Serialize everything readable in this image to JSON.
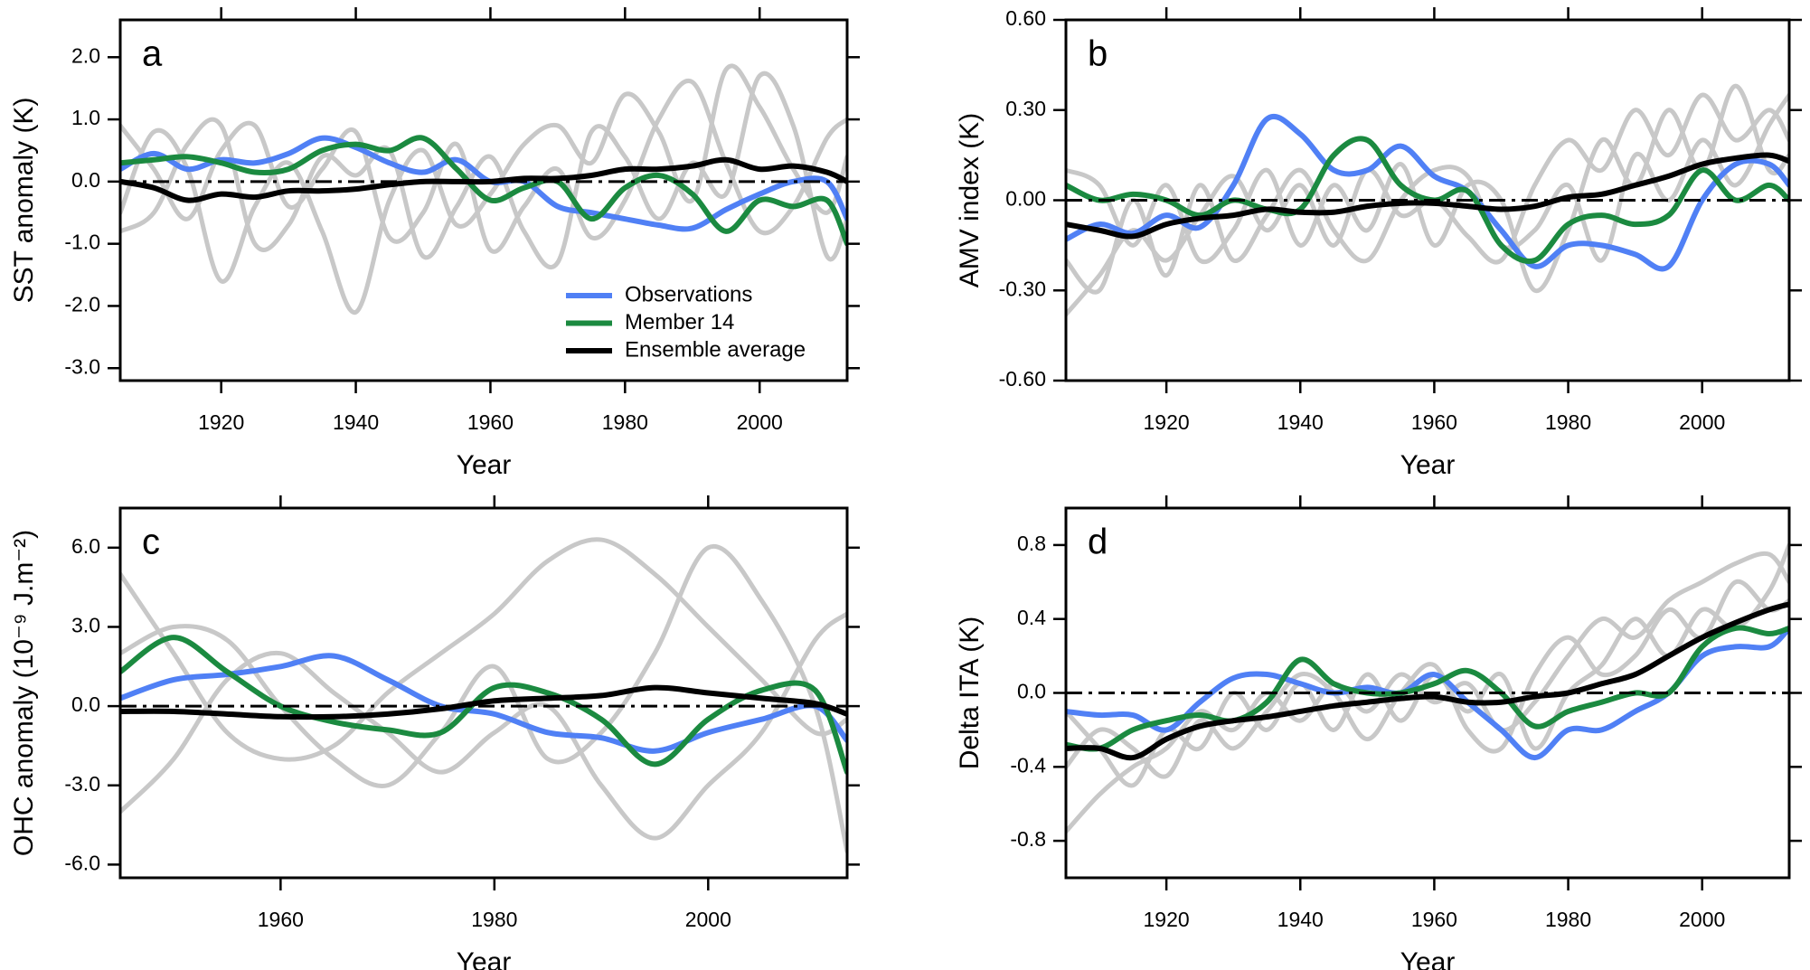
{
  "chart_data": [
    {
      "type": "line",
      "label": "a",
      "ylabel": "SST anomaly (K)",
      "xlabel": "Year",
      "x": [
        1905,
        1910,
        1915,
        1920,
        1925,
        1930,
        1935,
        1940,
        1945,
        1950,
        1955,
        1960,
        1965,
        1970,
        1975,
        1980,
        1985,
        1990,
        1995,
        2000,
        2005,
        2010,
        2013
      ],
      "xlim": [
        1905,
        2013
      ],
      "xticks": [
        1920,
        1940,
        1960,
        1980,
        2000
      ],
      "ylim": [
        -3.2,
        2.6
      ],
      "yticks": [
        {
          "value": -3,
          "label": "-3.0"
        },
        {
          "value": -2,
          "label": "-2.0"
        },
        {
          "value": -1,
          "label": "-1.0"
        },
        {
          "value": 0,
          "label": "0.0"
        },
        {
          "value": 1,
          "label": "1.0"
        },
        {
          "value": 2,
          "label": "2.0"
        }
      ],
      "reference_line": 0,
      "legend": "lower right",
      "series": [
        {
          "color": "#c8c8c8",
          "values": [
            -0.5,
            0.8,
            0.2,
            -1.6,
            -0.4,
            0.3,
            -0.8,
            -2.1,
            -0.3,
            0.5,
            -0.7,
            -0.2,
            0.6,
            0.9,
            0.3,
            1.4,
            0.8,
            -0.3,
            1.8,
            1.2,
            0.2,
            -0.5,
            0.4
          ]
        },
        {
          "color": "#c8c8c8",
          "values": [
            0.9,
            0.2,
            -0.6,
            0.5,
            0.9,
            -0.4,
            0.2,
            0.8,
            -0.9,
            -0.5,
            0.6,
            -1.1,
            -0.4,
            0.2,
            -0.9,
            -0.3,
            1.0,
            1.6,
            0.3,
            -0.8,
            -0.4,
            0.7,
            1.0
          ]
        },
        {
          "color": "#c8c8c8",
          "values": [
            -0.8,
            -0.5,
            0.6,
            0.9,
            -1.0,
            -0.7,
            0.4,
            0.1,
            0.5,
            -1.2,
            -0.4,
            0.4,
            -0.8,
            -1.3,
            0.8,
            0.4,
            -0.6,
            0.3,
            -0.2,
            1.7,
            0.9,
            -1.2,
            -0.6
          ]
        },
        {
          "name": "Observations",
          "color": "#5080f5",
          "values": [
            0.2,
            0.45,
            0.2,
            0.35,
            0.3,
            0.45,
            0.7,
            0.55,
            0.3,
            0.15,
            0.35,
            0.0,
            0.0,
            -0.4,
            -0.5,
            -0.6,
            -0.7,
            -0.75,
            -0.45,
            -0.2,
            0.0,
            0.0,
            -0.6
          ]
        },
        {
          "name": "Member 14",
          "color": "#1b8a40",
          "values": [
            0.3,
            0.35,
            0.4,
            0.3,
            0.15,
            0.2,
            0.5,
            0.6,
            0.5,
            0.7,
            0.2,
            -0.3,
            -0.1,
            0.0,
            -0.6,
            -0.1,
            0.1,
            -0.2,
            -0.8,
            -0.3,
            -0.4,
            -0.3,
            -1.0
          ]
        },
        {
          "name": "Ensemble average",
          "color": "#000000",
          "values": [
            0.0,
            -0.1,
            -0.3,
            -0.2,
            -0.25,
            -0.15,
            -0.15,
            -0.12,
            -0.05,
            0.0,
            0.0,
            0.0,
            0.05,
            0.05,
            0.1,
            0.2,
            0.2,
            0.25,
            0.35,
            0.2,
            0.25,
            0.15,
            0.0
          ]
        }
      ]
    },
    {
      "type": "line",
      "label": "b",
      "ylabel": "AMV index (K)",
      "xlabel": "Year",
      "x": [
        1905,
        1910,
        1915,
        1920,
        1925,
        1930,
        1935,
        1940,
        1945,
        1950,
        1955,
        1960,
        1965,
        1970,
        1975,
        1980,
        1985,
        1990,
        1995,
        2000,
        2005,
        2010,
        2013
      ],
      "xlim": [
        1905,
        2013
      ],
      "xticks": [
        1920,
        1940,
        1960,
        1980,
        2000
      ],
      "ylim": [
        -0.6,
        0.6
      ],
      "yticks": [
        {
          "value": -0.6,
          "label": "-0.60"
        },
        {
          "value": -0.3,
          "label": "-0.30"
        },
        {
          "value": 0,
          "label": "0.00"
        },
        {
          "value": 0.3,
          "label": "0.30"
        },
        {
          "value": 0.6,
          "label": "0.60"
        }
      ],
      "reference_line": 0,
      "series": [
        {
          "color": "#c8c8c8",
          "values": [
            -0.38,
            -0.25,
            -0.1,
            -0.2,
            -0.05,
            0.08,
            -0.1,
            0.05,
            -0.15,
            0.1,
            -0.05,
            0.0,
            -0.12,
            -0.2,
            0.05,
            0.2,
            0.1,
            0.3,
            0.15,
            0.35,
            0.2,
            0.3,
            0.2
          ]
        },
        {
          "color": "#c8c8c8",
          "values": [
            0.1,
            0.05,
            -0.15,
            0.05,
            -0.2,
            -0.1,
            0.1,
            -0.15,
            0.05,
            -0.1,
            0.12,
            -0.15,
            0.05,
            0.0,
            -0.3,
            -0.1,
            0.2,
            0.05,
            0.3,
            0.1,
            0.38,
            0.1,
            0.15
          ]
        },
        {
          "color": "#c8c8c8",
          "values": [
            -0.2,
            -0.3,
            0.0,
            -0.25,
            0.05,
            -0.2,
            -0.05,
            0.1,
            -0.1,
            -0.2,
            0.0,
            0.1,
            0.08,
            -0.15,
            -0.1,
            0.05,
            -0.2,
            0.15,
            0.0,
            0.2,
            0.05,
            0.25,
            0.35
          ]
        },
        {
          "color": "#5080f5",
          "values": [
            -0.13,
            -0.08,
            -0.11,
            -0.05,
            -0.09,
            0.05,
            0.27,
            0.22,
            0.1,
            0.1,
            0.18,
            0.08,
            0.03,
            -0.1,
            -0.22,
            -0.15,
            -0.15,
            -0.18,
            -0.22,
            0.0,
            0.12,
            0.12,
            0.05
          ]
        },
        {
          "color": "#1b8a40",
          "values": [
            0.05,
            0.0,
            0.02,
            0.0,
            -0.05,
            0.0,
            -0.03,
            -0.03,
            0.15,
            0.2,
            0.05,
            0.0,
            0.03,
            -0.15,
            -0.2,
            -0.08,
            -0.05,
            -0.08,
            -0.05,
            0.1,
            0.0,
            0.05,
            0.0
          ]
        },
        {
          "color": "#000000",
          "values": [
            -0.08,
            -0.1,
            -0.12,
            -0.08,
            -0.06,
            -0.05,
            -0.03,
            -0.04,
            -0.04,
            -0.02,
            -0.01,
            -0.01,
            -0.02,
            -0.03,
            -0.02,
            0.01,
            0.02,
            0.05,
            0.08,
            0.12,
            0.14,
            0.15,
            0.13
          ]
        }
      ]
    },
    {
      "type": "line",
      "label": "c",
      "ylabel": "OHC anomaly (10⁻⁹ J.m⁻²)",
      "xlabel": "Year",
      "x": [
        1945,
        1950,
        1955,
        1960,
        1965,
        1970,
        1975,
        1980,
        1985,
        1990,
        1995,
        2000,
        2005,
        2010,
        2013
      ],
      "xlim": [
        1945,
        2013
      ],
      "xticks": [
        1960,
        1980,
        2000
      ],
      "ylim": [
        -6.5,
        7.5
      ],
      "yticks": [
        {
          "value": -6,
          "label": "-6.0"
        },
        {
          "value": -3,
          "label": "-3.0"
        },
        {
          "value": 0,
          "label": "0.0"
        },
        {
          "value": 3,
          "label": "3.0"
        },
        {
          "value": 6,
          "label": "6.0"
        }
      ],
      "reference_line": 0,
      "series": [
        {
          "color": "#c8c8c8",
          "values": [
            5.0,
            2.0,
            -1.0,
            -2.0,
            -1.5,
            0.5,
            2.0,
            3.5,
            5.5,
            6.3,
            5.0,
            3.0,
            1.0,
            -1.0,
            -0.5
          ]
        },
        {
          "color": "#c8c8c8",
          "values": [
            -4.0,
            -2.0,
            1.0,
            2.0,
            0.5,
            -1.0,
            -2.5,
            -1.0,
            0.0,
            -3.0,
            -5.0,
            -3.0,
            -1.0,
            2.5,
            3.5
          ]
        },
        {
          "color": "#c8c8c8",
          "values": [
            2.0,
            3.0,
            2.5,
            0.0,
            -2.0,
            -3.0,
            -1.0,
            1.5,
            -2.0,
            -1.0,
            2.0,
            6.0,
            4.0,
            0.0,
            -5.5
          ]
        },
        {
          "color": "#5080f5",
          "values": [
            0.3,
            1.0,
            1.2,
            1.5,
            1.9,
            1.0,
            0.0,
            -0.3,
            -1.0,
            -1.2,
            -1.7,
            -1.0,
            -0.5,
            0.0,
            -1.3
          ]
        },
        {
          "color": "#1b8a40",
          "values": [
            1.3,
            2.6,
            1.3,
            0.0,
            -0.6,
            -0.9,
            -1.0,
            0.7,
            0.5,
            -0.5,
            -2.2,
            -0.5,
            0.6,
            0.6,
            -2.5
          ]
        },
        {
          "color": "#000000",
          "values": [
            -0.2,
            -0.2,
            -0.3,
            -0.4,
            -0.4,
            -0.3,
            -0.1,
            0.2,
            0.3,
            0.4,
            0.7,
            0.5,
            0.3,
            0.1,
            -0.3
          ]
        }
      ]
    },
    {
      "type": "line",
      "label": "d",
      "ylabel": "Delta ITA (K)",
      "xlabel": "Year",
      "x": [
        1905,
        1910,
        1915,
        1920,
        1925,
        1930,
        1935,
        1940,
        1945,
        1950,
        1955,
        1960,
        1965,
        1970,
        1975,
        1980,
        1985,
        1990,
        1995,
        2000,
        2005,
        2010,
        2013
      ],
      "xlim": [
        1905,
        2013
      ],
      "xticks": [
        1920,
        1940,
        1960,
        1980,
        2000
      ],
      "ylim": [
        -1.0,
        1.0
      ],
      "yticks": [
        {
          "value": -0.8,
          "label": "-0.8"
        },
        {
          "value": -0.4,
          "label": "-0.4"
        },
        {
          "value": 0,
          "label": "0.0"
        },
        {
          "value": 0.4,
          "label": "0.4"
        },
        {
          "value": 0.8,
          "label": "0.8"
        }
      ],
      "reference_line": 0,
      "series": [
        {
          "color": "#c8c8c8",
          "values": [
            -0.75,
            -0.55,
            -0.4,
            -0.3,
            -0.1,
            -0.2,
            0.0,
            -0.15,
            0.05,
            -0.1,
            0.1,
            -0.05,
            0.05,
            -0.2,
            -0.05,
            0.2,
            0.4,
            0.3,
            0.5,
            0.6,
            0.7,
            0.75,
            0.6
          ]
        },
        {
          "color": "#c8c8c8",
          "values": [
            -0.1,
            -0.3,
            -0.5,
            -0.2,
            -0.3,
            0.0,
            -0.2,
            0.05,
            -0.2,
            0.1,
            -0.15,
            0.1,
            -0.1,
            0.1,
            -0.3,
            0.0,
            0.15,
            0.4,
            0.2,
            0.45,
            0.35,
            0.55,
            0.8
          ]
        },
        {
          "color": "#c8c8c8",
          "values": [
            -0.4,
            -0.2,
            -0.3,
            -0.45,
            -0.15,
            -0.3,
            -0.1,
            0.1,
            0.0,
            -0.25,
            0.0,
            0.15,
            -0.2,
            -0.3,
            0.1,
            0.3,
            0.1,
            0.2,
            0.45,
            0.3,
            0.6,
            0.45,
            0.5
          ]
        },
        {
          "color": "#5080f5",
          "values": [
            -0.1,
            -0.12,
            -0.12,
            -0.2,
            -0.05,
            0.08,
            0.1,
            0.05,
            0.0,
            0.03,
            0.0,
            0.1,
            -0.05,
            -0.2,
            -0.35,
            -0.2,
            -0.2,
            -0.1,
            0.0,
            0.2,
            0.25,
            0.25,
            0.35
          ]
        },
        {
          "color": "#1b8a40",
          "values": [
            -0.28,
            -0.3,
            -0.2,
            -0.15,
            -0.12,
            -0.15,
            -0.05,
            0.18,
            0.05,
            0.0,
            0.0,
            0.05,
            0.12,
            0.0,
            -0.18,
            -0.1,
            -0.05,
            0.0,
            0.0,
            0.25,
            0.35,
            0.32,
            0.35
          ]
        },
        {
          "color": "#000000",
          "values": [
            -0.3,
            -0.3,
            -0.35,
            -0.25,
            -0.18,
            -0.15,
            -0.13,
            -0.1,
            -0.07,
            -0.05,
            -0.03,
            -0.02,
            -0.05,
            -0.05,
            -0.02,
            0.0,
            0.05,
            0.1,
            0.2,
            0.3,
            0.38,
            0.45,
            0.48
          ]
        }
      ]
    }
  ]
}
